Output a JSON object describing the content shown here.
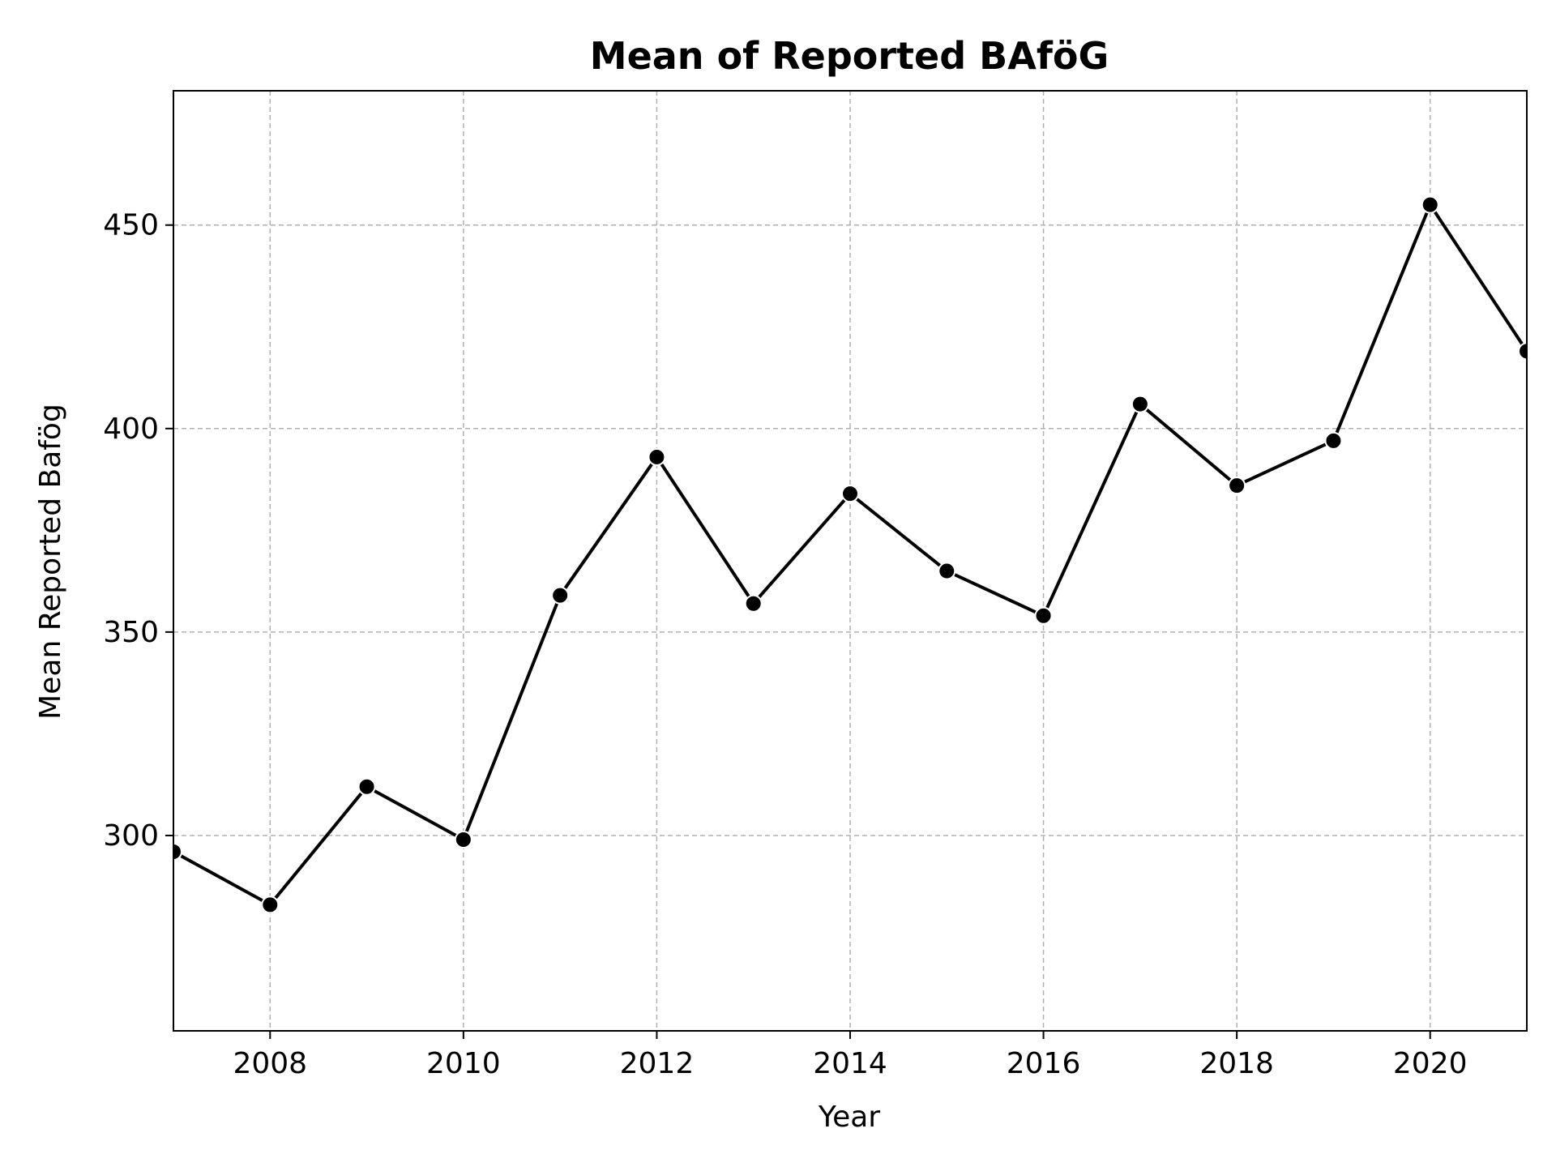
{
  "chart_data": {
    "type": "line",
    "title": "Mean of Reported BAföG",
    "xlabel": "Year",
    "ylabel": "Mean Reported Bafög",
    "x": [
      2007,
      2008,
      2009,
      2010,
      2011,
      2012,
      2013,
      2014,
      2015,
      2016,
      2017,
      2018,
      2019,
      2020,
      2021
    ],
    "series": [
      {
        "values": [
          296,
          283,
          312,
          299,
          359,
          393,
          357,
          384,
          365,
          354,
          406,
          386,
          397,
          455,
          419
        ]
      }
    ],
    "xlim": [
      2007,
      2021
    ],
    "ylim": [
      252,
      483
    ],
    "xticks": [
      2008,
      2010,
      2012,
      2014,
      2016,
      2018,
      2020
    ],
    "yticks": [
      300,
      350,
      400,
      450
    ],
    "grid": true,
    "legend": "none",
    "colors": {
      "line": "#000000",
      "marker": "#000000",
      "marker_edge": "#ffffff",
      "grid": "#b0b0b0"
    }
  }
}
